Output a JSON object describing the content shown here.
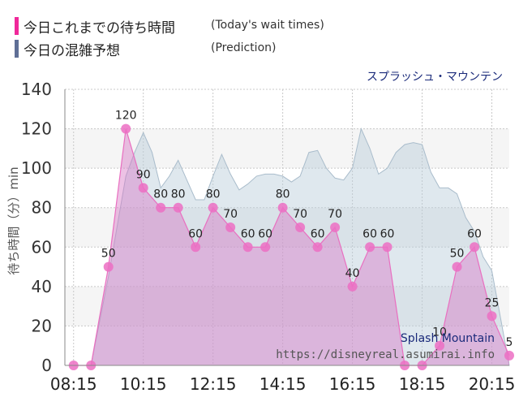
{
  "legend": {
    "today_label": "今日これまでの待ち時間",
    "today_sub": "(Today's wait times)",
    "today_color": "#f0289a",
    "prediction_label": "今日の混雑予想",
    "prediction_sub": "(Prediction)",
    "prediction_color": "#5f6f96"
  },
  "attraction_jp": "スプラッシュ・マウンテン",
  "attraction_en": "Splash Mountain",
  "site_url": "https://disneyreal.asumirai.info",
  "chart_data": {
    "type": "area",
    "title": "",
    "xlabel": "",
    "ylabel": "待ち時間（分）min",
    "ylim": [
      0,
      140
    ],
    "yticks": [
      0,
      20,
      40,
      60,
      80,
      100,
      120,
      140
    ],
    "xticks": [
      "08:15",
      "10:15",
      "12:15",
      "14:15",
      "16:15",
      "18:15",
      "20:15"
    ],
    "x_range_hours": [
      8.0,
      20.75
    ],
    "series": [
      {
        "name": "今日これまでの待ち時間",
        "color": "#e96fc0",
        "x": [
          "08:15",
          "08:45",
          "09:15",
          "09:45",
          "10:15",
          "10:45",
          "11:15",
          "11:45",
          "12:15",
          "12:45",
          "13:15",
          "13:45",
          "14:15",
          "14:45",
          "15:15",
          "15:45",
          "16:15",
          "16:45",
          "17:15",
          "17:45",
          "18:15",
          "18:45",
          "19:15",
          "19:45",
          "20:15",
          "20:45"
        ],
        "values": [
          0,
          0,
          50,
          120,
          90,
          80,
          80,
          60,
          80,
          70,
          60,
          60,
          80,
          70,
          60,
          70,
          40,
          60,
          60,
          0,
          0,
          10,
          50,
          60,
          25,
          5
        ]
      },
      {
        "name": "今日の混雑予想",
        "color": "#b9ccd9",
        "x": [
          "08:15",
          "08:45",
          "09:15",
          "09:45",
          "10:00",
          "10:15",
          "10:30",
          "10:45",
          "11:00",
          "11:15",
          "11:30",
          "11:45",
          "12:00",
          "12:15",
          "12:30",
          "12:45",
          "13:00",
          "13:15",
          "13:30",
          "13:45",
          "14:00",
          "14:15",
          "14:30",
          "14:45",
          "15:00",
          "15:15",
          "15:30",
          "15:45",
          "16:00",
          "16:15",
          "16:30",
          "16:45",
          "17:00",
          "17:15",
          "17:30",
          "17:45",
          "18:00",
          "18:15",
          "18:30",
          "18:45",
          "19:00",
          "19:15",
          "19:30",
          "19:45",
          "20:00",
          "20:15",
          "20:45"
        ],
        "values": [
          0,
          0,
          45,
          96,
          108,
          118,
          108,
          90,
          96,
          104,
          94,
          84,
          84,
          96,
          107,
          97,
          89,
          92,
          96,
          97,
          97,
          96,
          93,
          96,
          108,
          109,
          100,
          95,
          94,
          100,
          120,
          110,
          97,
          100,
          108,
          112,
          113,
          112,
          98,
          90,
          90,
          87,
          75,
          68,
          55,
          48,
          0
        ]
      }
    ],
    "data_labels": [
      50,
      120,
      90,
      80,
      80,
      60,
      80,
      70,
      60,
      60,
      80,
      70,
      60,
      70,
      40,
      60,
      60,
      10,
      50,
      60,
      25,
      5
    ],
    "grid": true
  }
}
